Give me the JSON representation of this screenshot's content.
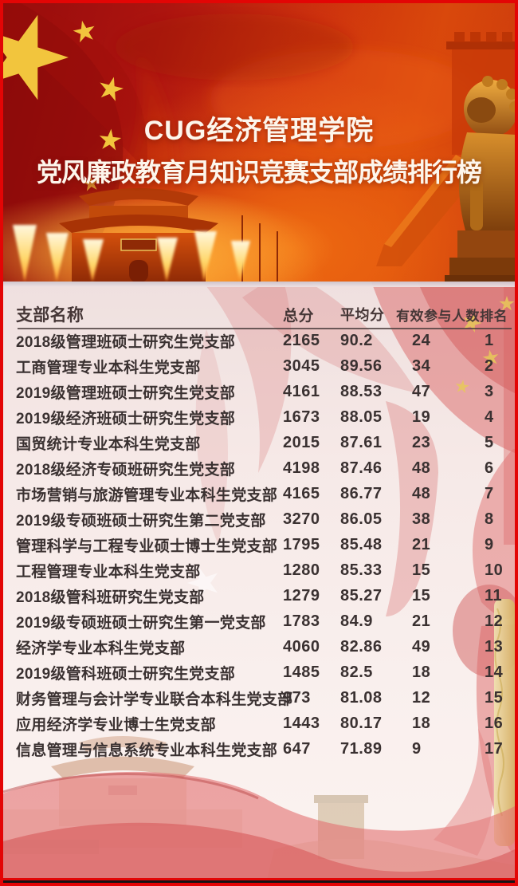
{
  "header": {
    "title_line1": "CUG经济管理学院",
    "title_line2": "党风廉政教育月知识竞赛支部成绩排行榜"
  },
  "table": {
    "columns": [
      "支部名称",
      "总分",
      "平均分",
      "有效参与人数",
      "排名"
    ],
    "rows": [
      {
        "name": "2018级管理班硕士研究生党支部",
        "total": "2165",
        "avg": "90.2",
        "participants": "24",
        "rank": "1"
      },
      {
        "name": "工商管理专业本科生党支部",
        "total": "3045",
        "avg": "89.56",
        "participants": "34",
        "rank": "2"
      },
      {
        "name": "2019级管理班硕士研究生党支部",
        "total": "4161",
        "avg": "88.53",
        "participants": "47",
        "rank": "3"
      },
      {
        "name": "2019级经济班硕士研究生党支部",
        "total": "1673",
        "avg": "88.05",
        "participants": "19",
        "rank": "4"
      },
      {
        "name": "国贸统计专业本科生党支部",
        "total": "2015",
        "avg": "87.61",
        "participants": "23",
        "rank": "5"
      },
      {
        "name": "2018级经济专硕班研究生党支部",
        "total": "4198",
        "avg": "87.46",
        "participants": "48",
        "rank": "6"
      },
      {
        "name": "市场营销与旅游管理专业本科生党支部",
        "total": "4165",
        "avg": "86.77",
        "participants": "48",
        "rank": "7"
      },
      {
        "name": "2019级专硕班硕士研究生第二党支部",
        "total": "3270",
        "avg": "86.05",
        "participants": "38",
        "rank": "8"
      },
      {
        "name": "管理科学与工程专业硕士博士生党支部",
        "total": "1795",
        "avg": "85.48",
        "participants": "21",
        "rank": "9"
      },
      {
        "name": "工程管理专业本科生党支部",
        "total": "1280",
        "avg": "85.33",
        "participants": "15",
        "rank": "10"
      },
      {
        "name": "2018级管科班研究生党支部",
        "total": "1279",
        "avg": "85.27",
        "participants": "15",
        "rank": "11"
      },
      {
        "name": "2019级专硕班硕士研究生第一党支部",
        "total": "1783",
        "avg": "84.9",
        "participants": "21",
        "rank": "12"
      },
      {
        "name": "经济学专业本科生党支部",
        "total": "4060",
        "avg": "82.86",
        "participants": "49",
        "rank": "13"
      },
      {
        "name": "2019级管科班硕士研究生党支部",
        "total": "1485",
        "avg": "82.5",
        "participants": "18",
        "rank": "14"
      },
      {
        "name": "财务管理与会计学专业联合本科生党支部",
        "total": "973",
        "avg": "81.08",
        "participants": "12",
        "rank": "15"
      },
      {
        "name": "应用经济学专业博士生党支部",
        "total": "1443",
        "avg": "80.17",
        "participants": "18",
        "rank": "16"
      },
      {
        "name": "信息管理与信息系统专业本科生党支部",
        "total": "647",
        "avg": "71.89",
        "participants": "9",
        "rank": "17"
      }
    ]
  },
  "colors": {
    "frame_border": "#e30505",
    "banner_deep_red": "#960c0c",
    "banner_orange": "#d8480c",
    "star_yellow": "#f2c53d",
    "title_text": "#fdf6ec",
    "table_background": "#f6e9e7",
    "table_text": "#3a3131",
    "faded_red_accent": "#d96a6a",
    "gold_strip": "#e3cc8f"
  }
}
